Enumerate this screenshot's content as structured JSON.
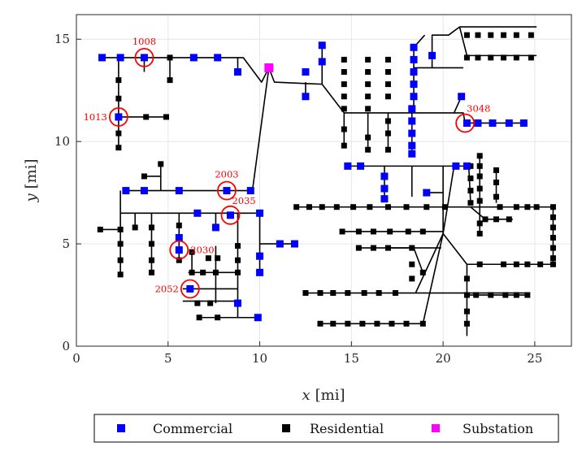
{
  "colors": {
    "commercial": "#0000ff",
    "residential": "#000000",
    "substation": "#ff00ff",
    "highlight": "#ff0000",
    "line": "#000000",
    "grid": "#e6e6e6"
  },
  "chart_data": {
    "type": "scatter",
    "xlabel_var": "x",
    "xlabel_unit": "[mi]",
    "ylabel_var": "y",
    "ylabel_unit": "[mi]",
    "xlim": [
      0,
      27
    ],
    "ylim": [
      0,
      16.2
    ],
    "xticks": [
      0,
      5,
      10,
      15,
      20,
      25
    ],
    "yticks": [
      0,
      5,
      10,
      15
    ],
    "grid": true,
    "legend_placement": "bottom",
    "legend": [
      "Commercial",
      "Residential",
      "Substation"
    ],
    "lines": [
      [
        [
          1.4,
          14.1
        ],
        [
          9.1,
          14.1
        ],
        [
          10.1,
          12.9
        ],
        [
          10.5,
          13.6
        ]
      ],
      [
        [
          10.5,
          13.6
        ],
        [
          10.8,
          12.9
        ],
        [
          13.4,
          12.8
        ],
        [
          14.6,
          11.4
        ],
        [
          21.1,
          11.4
        ],
        [
          21.2,
          10.9
        ],
        [
          24.6,
          10.9
        ]
      ],
      [
        [
          13.4,
          12.8
        ],
        [
          13.4,
          14.7
        ]
      ],
      [
        [
          12.5,
          12.9
        ],
        [
          12.5,
          12.2
        ]
      ],
      [
        [
          17,
          11.4
        ],
        [
          17,
          9.6
        ]
      ],
      [
        [
          18.3,
          11.4
        ],
        [
          18.3,
          9.3
        ]
      ],
      [
        [
          18.4,
          11.4
        ],
        [
          18.4,
          14.6
        ]
      ],
      [
        [
          18.4,
          14.6
        ],
        [
          19,
          15.2
        ]
      ],
      [
        [
          18.4,
          13.6
        ],
        [
          21.1,
          13.6
        ]
      ],
      [
        [
          19.4,
          13.6
        ],
        [
          19.4,
          15.2
        ],
        [
          20.3,
          15.2
        ],
        [
          20.9,
          15.6
        ],
        [
          25.1,
          15.6
        ]
      ],
      [
        [
          20.9,
          15.6
        ],
        [
          21.3,
          14.2
        ],
        [
          25.1,
          14.2
        ]
      ],
      [
        [
          14.6,
          11.4
        ],
        [
          14.6,
          9.8
        ]
      ],
      [
        [
          15.9,
          11.4
        ],
        [
          15.9,
          9.6
        ]
      ],
      [
        [
          20.6,
          11.4
        ],
        [
          21.0,
          12.2
        ]
      ],
      [
        [
          2.3,
          14.1
        ],
        [
          2.3,
          9.7
        ]
      ],
      [
        [
          2.3,
          11.2
        ],
        [
          4.9,
          11.2
        ]
      ],
      [
        [
          3.7,
          14.1
        ],
        [
          3.7,
          13.4
        ]
      ],
      [
        [
          5.1,
          14.1
        ],
        [
          5.1,
          13.0
        ]
      ],
      [
        [
          8.8,
          14.1
        ],
        [
          8.8,
          13.4
        ]
      ],
      [
        [
          10.5,
          13.6
        ],
        [
          9.6,
          7.6
        ],
        [
          2.7,
          7.6
        ]
      ],
      [
        [
          4.6,
          7.6
        ],
        [
          4.6,
          9.0
        ]
      ],
      [
        [
          3.7,
          8.3
        ],
        [
          4.6,
          8.3
        ]
      ],
      [
        [
          2.4,
          7.6
        ],
        [
          2.4,
          3.6
        ]
      ],
      [
        [
          1.3,
          5.7
        ],
        [
          2.4,
          5.7
        ]
      ],
      [
        [
          2.4,
          6.5
        ],
        [
          10.0,
          6.5
        ],
        [
          10.0,
          3.6
        ]
      ],
      [
        [
          10.0,
          5.0
        ],
        [
          11.9,
          5.0
        ]
      ],
      [
        [
          3.2,
          6.5
        ],
        [
          3.2,
          5.8
        ]
      ],
      [
        [
          4.1,
          6.5
        ],
        [
          4.1,
          3.6
        ]
      ],
      [
        [
          5.6,
          6.5
        ],
        [
          5.6,
          4.2
        ]
      ],
      [
        [
          7.6,
          6.5
        ],
        [
          7.6,
          5.8
        ]
      ],
      [
        [
          8.8,
          6.5
        ],
        [
          8.8,
          1.4
        ],
        [
          9.9,
          1.4
        ]
      ],
      [
        [
          6.1,
          3.6
        ],
        [
          8.8,
          3.6
        ]
      ],
      [
        [
          6.3,
          4.5
        ],
        [
          6.3,
          3.6
        ]
      ],
      [
        [
          5.8,
          2.8
        ],
        [
          8.8,
          2.8
        ]
      ],
      [
        [
          5.8,
          2.2
        ],
        [
          8.8,
          2.2
        ]
      ],
      [
        [
          6.7,
          1.4
        ],
        [
          8.8,
          1.4
        ]
      ],
      [
        [
          7.6,
          4.9
        ],
        [
          7.6,
          2.1
        ]
      ],
      [
        [
          14.8,
          8.8
        ],
        [
          21.5,
          8.8
        ]
      ],
      [
        [
          16.8,
          8.8
        ],
        [
          16.8,
          7.2
        ]
      ],
      [
        [
          18.3,
          8.8
        ],
        [
          18.3,
          7.3
        ]
      ],
      [
        [
          19.1,
          7.5
        ],
        [
          20.0,
          7.5
        ]
      ],
      [
        [
          20.0,
          8.8
        ],
        [
          20.0,
          5.5
        ],
        [
          21.3,
          4.0
        ],
        [
          26.0,
          4.0
        ]
      ],
      [
        [
          20.0,
          5.5
        ],
        [
          18.9,
          1.1
        ],
        [
          16.8,
          1.1
        ],
        [
          13.2,
          1.1
        ]
      ],
      [
        [
          12.0,
          6.8
        ],
        [
          25.1,
          6.8
        ],
        [
          26.0,
          6.8
        ],
        [
          26.0,
          4.0
        ]
      ],
      [
        [
          14.5,
          5.6
        ],
        [
          20.0,
          5.6
        ]
      ],
      [
        [
          15.4,
          4.8
        ],
        [
          19.9,
          4.8
        ]
      ],
      [
        [
          17.0,
          4.8
        ],
        [
          18.4,
          4.8
        ],
        [
          18.9,
          3.6
        ]
      ],
      [
        [
          20.0,
          5.5
        ],
        [
          18.5,
          2.6
        ],
        [
          12.5,
          2.6
        ]
      ],
      [
        [
          18.5,
          2.6
        ],
        [
          24.6,
          2.6
        ]
      ],
      [
        [
          22.0,
          9.3
        ],
        [
          22.0,
          5.5
        ]
      ],
      [
        [
          21.4,
          8.8
        ],
        [
          21.5,
          7.0
        ]
      ],
      [
        [
          22.9,
          8.5
        ],
        [
          22.9,
          7.0
        ]
      ],
      [
        [
          21.5,
          6.8
        ],
        [
          22.3,
          6.2
        ],
        [
          23.8,
          6.2
        ]
      ],
      [
        [
          21.3,
          4.0
        ],
        [
          21.3,
          0.5
        ]
      ],
      [
        [
          21.3,
          2.5
        ],
        [
          24.7,
          2.5
        ]
      ],
      [
        [
          23.0,
          4.0
        ],
        [
          23.0,
          4.0
        ]
      ],
      [
        [
          20.0,
          5.5
        ],
        [
          20.6,
          8.8
        ]
      ]
    ],
    "commercial": [
      [
        1.4,
        14.1
      ],
      [
        2.4,
        14.1
      ],
      [
        3.7,
        14.1
      ],
      [
        6.4,
        14.1
      ],
      [
        7.7,
        14.1
      ],
      [
        8.8,
        13.4
      ],
      [
        2.3,
        11.2
      ],
      [
        12.5,
        13.4
      ],
      [
        12.5,
        12.2
      ],
      [
        13.4,
        14.7
      ],
      [
        13.4,
        13.9
      ],
      [
        18.4,
        14.6
      ],
      [
        18.4,
        14.0
      ],
      [
        18.4,
        13.4
      ],
      [
        18.4,
        12.8
      ],
      [
        18.4,
        12.2
      ],
      [
        18.3,
        11.6
      ],
      [
        18.3,
        11.0
      ],
      [
        18.3,
        10.4
      ],
      [
        18.3,
        9.8
      ],
      [
        18.3,
        9.4
      ],
      [
        19.4,
        14.2
      ],
      [
        21.0,
        12.2
      ],
      [
        21.3,
        10.9
      ],
      [
        21.9,
        10.9
      ],
      [
        22.7,
        10.9
      ],
      [
        23.6,
        10.9
      ],
      [
        24.4,
        10.9
      ],
      [
        2.7,
        7.6
      ],
      [
        3.7,
        7.6
      ],
      [
        5.6,
        7.6
      ],
      [
        8.2,
        7.6
      ],
      [
        9.5,
        7.6
      ],
      [
        8.4,
        6.4
      ],
      [
        6.6,
        6.5
      ],
      [
        7.6,
        5.8
      ],
      [
        10.0,
        6.5
      ],
      [
        10.0,
        4.4
      ],
      [
        10.0,
        3.6
      ],
      [
        11.1,
        5.0
      ],
      [
        11.9,
        5.0
      ],
      [
        5.6,
        5.3
      ],
      [
        5.6,
        4.7
      ],
      [
        6.2,
        2.8
      ],
      [
        8.8,
        2.1
      ],
      [
        9.9,
        1.4
      ],
      [
        14.8,
        8.8
      ],
      [
        15.5,
        8.8
      ],
      [
        16.8,
        8.3
      ],
      [
        16.8,
        7.7
      ],
      [
        16.8,
        7.2
      ],
      [
        19.1,
        7.5
      ],
      [
        20.7,
        8.8
      ],
      [
        21.3,
        8.8
      ]
    ],
    "residential": [
      [
        2.3,
        13.0
      ],
      [
        2.3,
        12.1
      ],
      [
        2.3,
        10.4
      ],
      [
        2.3,
        9.7
      ],
      [
        3.8,
        11.2
      ],
      [
        4.9,
        11.2
      ],
      [
        5.1,
        14.1
      ],
      [
        5.1,
        13.0
      ],
      [
        14.6,
        14.0
      ],
      [
        14.6,
        13.4
      ],
      [
        14.6,
        12.8
      ],
      [
        14.6,
        12.2
      ],
      [
        14.6,
        11.6
      ],
      [
        14.6,
        10.6
      ],
      [
        14.6,
        9.8
      ],
      [
        15.9,
        14.0
      ],
      [
        15.9,
        13.4
      ],
      [
        15.9,
        12.8
      ],
      [
        15.9,
        12.2
      ],
      [
        15.9,
        11.6
      ],
      [
        15.9,
        10.2
      ],
      [
        15.9,
        9.6
      ],
      [
        17.0,
        14.0
      ],
      [
        17.0,
        13.4
      ],
      [
        17.0,
        12.8
      ],
      [
        17.0,
        12.2
      ],
      [
        17.0,
        11.0
      ],
      [
        17.0,
        10.4
      ],
      [
        17.0,
        9.6
      ],
      [
        21.3,
        15.2
      ],
      [
        21.9,
        15.2
      ],
      [
        22.6,
        15.2
      ],
      [
        23.3,
        15.2
      ],
      [
        24.0,
        15.2
      ],
      [
        24.8,
        15.2
      ],
      [
        21.3,
        14.1
      ],
      [
        21.9,
        14.1
      ],
      [
        22.6,
        14.1
      ],
      [
        23.3,
        14.1
      ],
      [
        24.0,
        14.1
      ],
      [
        24.8,
        14.1
      ],
      [
        4.6,
        8.9
      ],
      [
        3.7,
        8.3
      ],
      [
        1.3,
        5.7
      ],
      [
        2.4,
        5.7
      ],
      [
        2.4,
        5.0
      ],
      [
        2.4,
        4.2
      ],
      [
        2.4,
        3.5
      ],
      [
        3.2,
        5.8
      ],
      [
        4.1,
        5.8
      ],
      [
        4.1,
        5.0
      ],
      [
        4.1,
        4.2
      ],
      [
        4.1,
        3.6
      ],
      [
        5.6,
        4.2
      ],
      [
        5.6,
        5.9
      ],
      [
        6.3,
        4.6
      ],
      [
        6.3,
        3.6
      ],
      [
        7.2,
        4.3
      ],
      [
        7.7,
        4.3
      ],
      [
        8.8,
        4.9
      ],
      [
        8.8,
        4.2
      ],
      [
        8.8,
        3.6
      ],
      [
        6.9,
        3.6
      ],
      [
        7.6,
        3.6
      ],
      [
        6.6,
        2.1
      ],
      [
        7.3,
        2.1
      ],
      [
        6.7,
        1.4
      ],
      [
        7.7,
        1.4
      ],
      [
        12.0,
        6.8
      ],
      [
        12.7,
        6.8
      ],
      [
        13.4,
        6.8
      ],
      [
        14.2,
        6.8
      ],
      [
        15.1,
        6.8
      ],
      [
        16.0,
        6.8
      ],
      [
        17.0,
        6.8
      ],
      [
        18.0,
        6.8
      ],
      [
        19.1,
        6.8
      ],
      [
        20.1,
        6.8
      ],
      [
        14.5,
        5.6
      ],
      [
        15.4,
        5.6
      ],
      [
        16.2,
        5.6
      ],
      [
        17.1,
        5.6
      ],
      [
        18.1,
        5.6
      ],
      [
        18.9,
        5.6
      ],
      [
        15.4,
        4.8
      ],
      [
        16.2,
        4.8
      ],
      [
        17.0,
        4.8
      ],
      [
        18.3,
        4.8
      ],
      [
        18.9,
        3.6
      ],
      [
        12.5,
        2.6
      ],
      [
        13.3,
        2.6
      ],
      [
        14.0,
        2.6
      ],
      [
        14.8,
        2.6
      ],
      [
        15.7,
        2.6
      ],
      [
        16.5,
        2.6
      ],
      [
        17.4,
        2.6
      ],
      [
        13.3,
        1.1
      ],
      [
        14.0,
        1.1
      ],
      [
        14.8,
        1.1
      ],
      [
        15.6,
        1.1
      ],
      [
        16.4,
        1.1
      ],
      [
        17.2,
        1.1
      ],
      [
        18.0,
        1.1
      ],
      [
        18.9,
        1.1
      ],
      [
        22.0,
        9.3
      ],
      [
        22.0,
        8.8
      ],
      [
        22.0,
        8.3
      ],
      [
        22.0,
        7.7
      ],
      [
        22.0,
        7.1
      ],
      [
        22.0,
        6.0
      ],
      [
        22.0,
        5.5
      ],
      [
        21.5,
        8.8
      ],
      [
        21.5,
        8.2
      ],
      [
        21.5,
        7.6
      ],
      [
        21.5,
        7.0
      ],
      [
        22.9,
        8.6
      ],
      [
        22.9,
        8.0
      ],
      [
        22.9,
        7.3
      ],
      [
        22.3,
        6.2
      ],
      [
        22.9,
        6.2
      ],
      [
        23.6,
        6.2
      ],
      [
        23.1,
        6.8
      ],
      [
        24.0,
        6.8
      ],
      [
        24.6,
        6.8
      ],
      [
        25.1,
        6.8
      ],
      [
        26.0,
        6.8
      ],
      [
        26.0,
        6.3
      ],
      [
        26.0,
        5.8
      ],
      [
        26.0,
        5.3
      ],
      [
        26.0,
        4.8
      ],
      [
        26.0,
        4.3
      ],
      [
        26.0,
        4.0
      ],
      [
        25.3,
        4.0
      ],
      [
        24.6,
        4.0
      ],
      [
        24.0,
        4.0
      ],
      [
        23.3,
        4.0
      ],
      [
        22.0,
        4.0
      ],
      [
        21.3,
        2.5
      ],
      [
        21.3,
        1.7
      ],
      [
        21.3,
        1.1
      ],
      [
        21.8,
        2.5
      ],
      [
        22.6,
        2.5
      ],
      [
        23.4,
        2.5
      ],
      [
        24.0,
        2.5
      ],
      [
        24.6,
        2.5
      ],
      [
        21.3,
        3.3
      ],
      [
        18.3,
        3.3
      ],
      [
        18.3,
        4.0
      ]
    ],
    "substation": [
      [
        10.5,
        13.6
      ]
    ],
    "highlighted_nodes": [
      {
        "label": "1008",
        "x": 3.7,
        "y": 14.1,
        "label_pos": "above"
      },
      {
        "label": "1013",
        "x": 2.3,
        "y": 11.2,
        "label_pos": "left"
      },
      {
        "label": "3048",
        "x": 21.2,
        "y": 10.9,
        "label_pos": "above-right"
      },
      {
        "label": "2003",
        "x": 8.2,
        "y": 7.6,
        "label_pos": "above"
      },
      {
        "label": "2035",
        "x": 8.4,
        "y": 6.4,
        "label_pos": "above-right"
      },
      {
        "label": "2030",
        "x": 5.6,
        "y": 4.7,
        "label_pos": "right"
      },
      {
        "label": "2052",
        "x": 6.2,
        "y": 2.8,
        "label_pos": "left"
      }
    ]
  }
}
